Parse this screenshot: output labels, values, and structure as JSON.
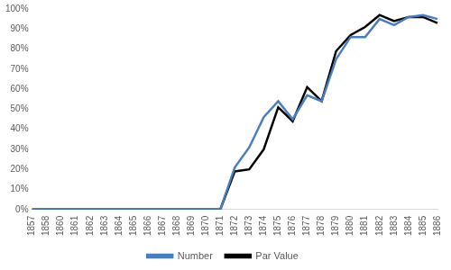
{
  "chart_data": {
    "type": "line",
    "categories": [
      "1857",
      "1858",
      "1860",
      "1861",
      "1862",
      "1863",
      "1864",
      "1865",
      "1866",
      "1867",
      "1868",
      "1869",
      "1870",
      "1871",
      "1872",
      "1873",
      "1874",
      "1875",
      "1876",
      "1877",
      "1878",
      "1879",
      "1880",
      "1881",
      "1882",
      "1883",
      "1884",
      "1885",
      "1886"
    ],
    "series": [
      {
        "name": "Number",
        "color": "#4a7ebb",
        "values": [
          0,
          0,
          0,
          0,
          0,
          0,
          0,
          0,
          0,
          0,
          0,
          0,
          0,
          0,
          21,
          31,
          46,
          54,
          45,
          57,
          54,
          75,
          86,
          86,
          95,
          92,
          96,
          97,
          95
        ]
      },
      {
        "name": "Par Value",
        "color": "#000000",
        "values": [
          0,
          0,
          0,
          0,
          0,
          0,
          0,
          0,
          0,
          0,
          0,
          0,
          0,
          0,
          19,
          20,
          30,
          51,
          44,
          61,
          54,
          79,
          87,
          91,
          97,
          94,
          96,
          96,
          93
        ]
      }
    ],
    "ylim": [
      0,
      100
    ],
    "yticks": [
      {
        "value": 0,
        "label": "0%"
      },
      {
        "value": 10,
        "label": "10%"
      },
      {
        "value": 20,
        "label": "20%"
      },
      {
        "value": 30,
        "label": "30%"
      },
      {
        "value": 40,
        "label": "40%"
      },
      {
        "value": 50,
        "label": "50%"
      },
      {
        "value": 60,
        "label": "60%"
      },
      {
        "value": 70,
        "label": "70%"
      },
      {
        "value": 80,
        "label": "80%"
      },
      {
        "value": 90,
        "label": "90%"
      },
      {
        "value": 100,
        "label": "100%"
      }
    ],
    "grid": false,
    "legend": "bottom"
  }
}
